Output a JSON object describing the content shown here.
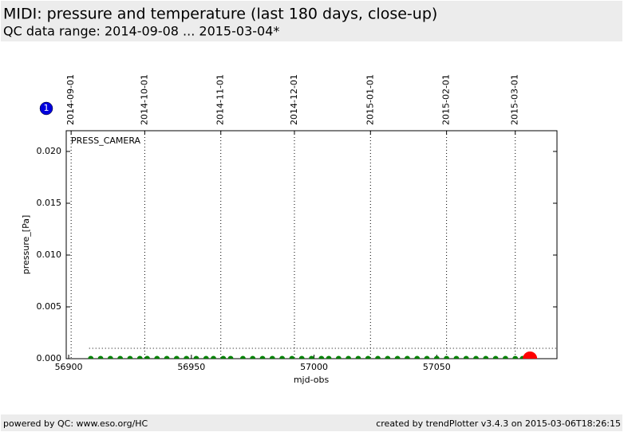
{
  "chart_data": {
    "type": "scatter",
    "title": "MIDI: pressure and temperature (last 180 days, close-up)",
    "subtitle": "QC data range: 2014-09-08 ... 2015-03-04*",
    "badge": "1",
    "panel_label": "PRESS_CAMERA",
    "xlabel": "mjd-obs",
    "ylabel": "pressure_[Pa]",
    "xlim": [
      56899,
      57099
    ],
    "xticks": [
      56900,
      56950,
      57000,
      57050
    ],
    "x2ticks": [
      {
        "value": 56901,
        "label": "2014-09-01"
      },
      {
        "value": 56931,
        "label": "2014-10-01"
      },
      {
        "value": 56962,
        "label": "2014-11-01"
      },
      {
        "value": 56992,
        "label": "2014-12-01"
      },
      {
        "value": 57023,
        "label": "2015-01-01"
      },
      {
        "value": 57054,
        "label": "2015-02-01"
      },
      {
        "value": 57082,
        "label": "2015-03-01"
      }
    ],
    "ylim": [
      0,
      0.022
    ],
    "yticks": [
      {
        "value": 0,
        "label": "0.000"
      },
      {
        "value": 0.005,
        "label": "0.005"
      },
      {
        "value": 0.01,
        "label": "0.010"
      },
      {
        "value": 0.015,
        "label": "0.015"
      },
      {
        "value": 0.02,
        "label": "0.020"
      }
    ],
    "threshold": 0.001,
    "grid": true,
    "series": [
      {
        "color": "#008000",
        "size": 3.5,
        "x": [
          56909,
          56913,
          56917,
          56921,
          56925,
          56929,
          56932,
          56936,
          56940,
          56944,
          56948,
          56952,
          56956,
          56959,
          56963,
          56966,
          56971,
          56975,
          56979,
          56983,
          56987,
          56991,
          56995,
          56999,
          57003,
          57006,
          57010,
          57014,
          57018,
          57022,
          57026,
          57030,
          57034,
          57038,
          57042,
          57046,
          57050,
          57054,
          57058,
          57062,
          57066,
          57070,
          57074,
          57078,
          57082,
          57085
        ],
        "values": [
          0,
          0,
          0,
          0,
          0,
          0,
          0,
          0,
          0,
          0,
          0,
          0,
          0,
          0,
          0,
          0,
          0,
          0,
          0,
          0,
          0,
          0,
          0,
          0,
          0,
          0,
          0,
          0,
          0,
          0,
          0,
          0,
          0,
          0,
          0,
          0,
          0,
          0,
          0,
          0,
          0,
          0,
          0,
          0,
          0,
          0
        ]
      },
      {
        "color": "#ff0000",
        "size": 9,
        "x": [
          57088
        ],
        "values": [
          0
        ]
      }
    ]
  },
  "footer": {
    "left": "powered by QC: www.eso.org/HC",
    "right": "created by trendPlotter v3.4.3 on 2015-03-06T18:26:15"
  }
}
